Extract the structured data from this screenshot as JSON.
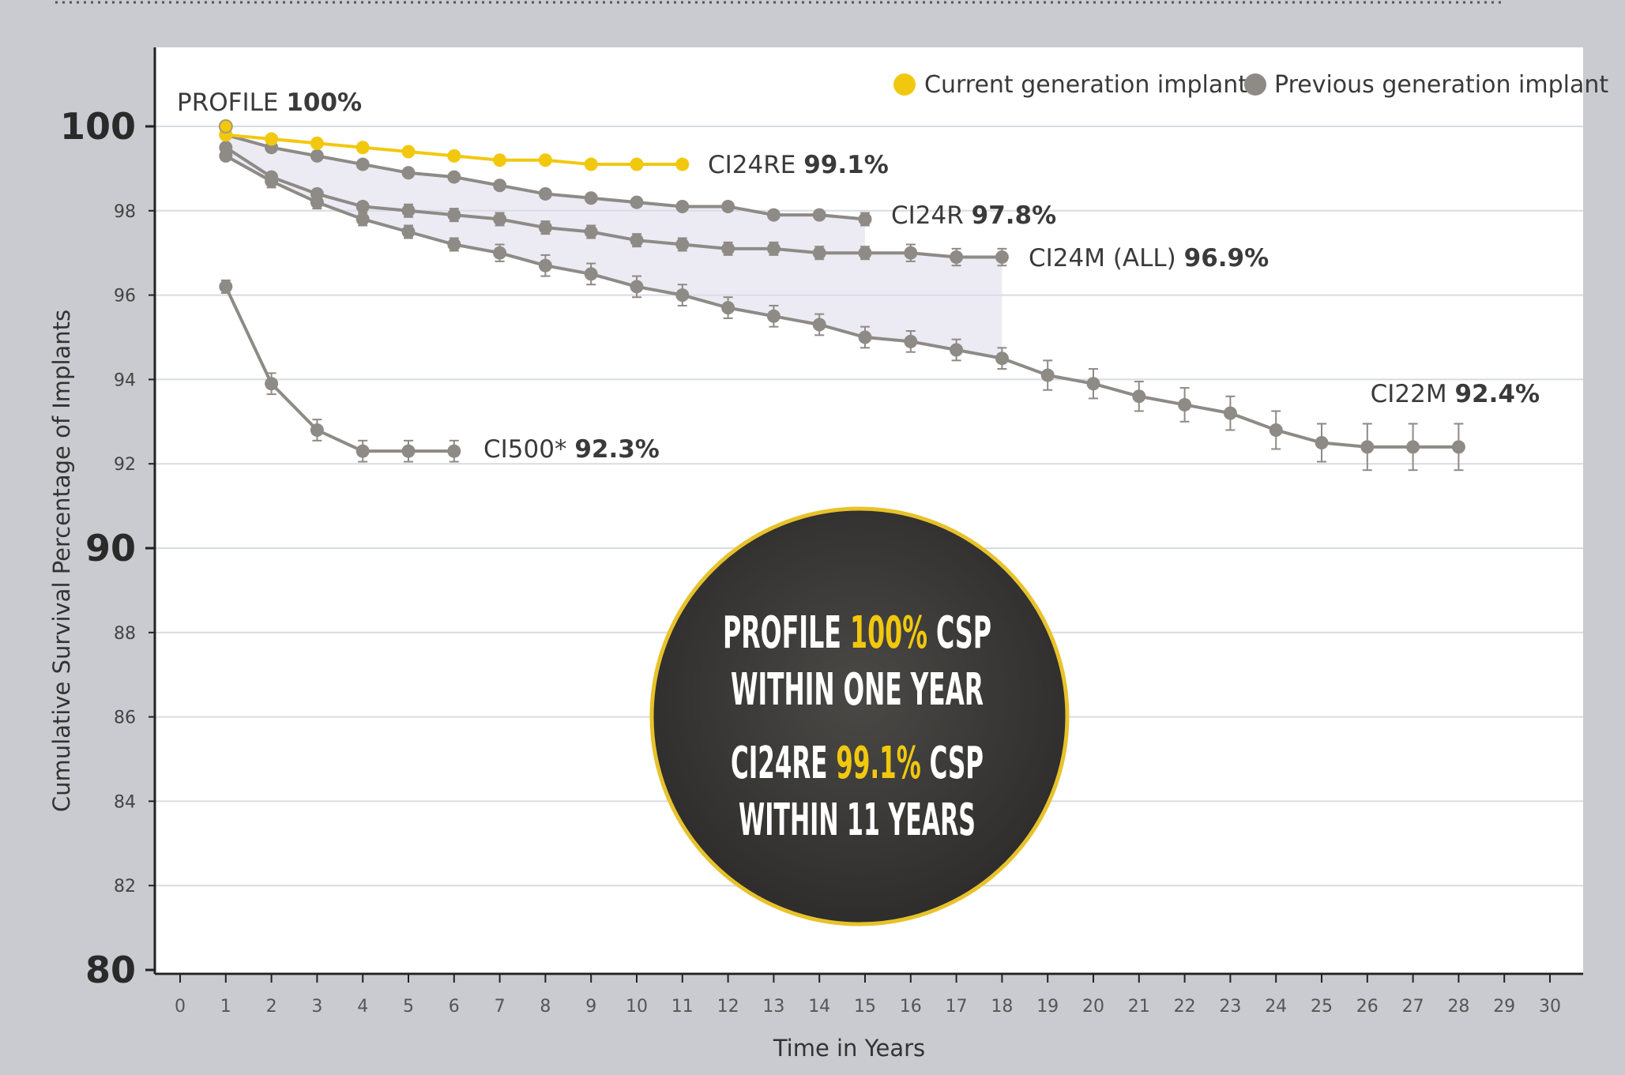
{
  "chart_data": {
    "type": "line",
    "title": "",
    "xlabel": "Time in Years",
    "ylabel": "Cumulative Survival Percentage of Implants",
    "xlim": [
      0,
      30
    ],
    "ylim": [
      80,
      102
    ],
    "x_ticks": [
      0,
      1,
      2,
      3,
      4,
      5,
      6,
      7,
      8,
      9,
      10,
      11,
      12,
      13,
      14,
      15,
      16,
      17,
      18,
      19,
      20,
      21,
      22,
      23,
      24,
      25,
      26,
      27,
      28,
      29,
      30
    ],
    "y_ticks_major": [
      100,
      90,
      80
    ],
    "y_ticks_minor": [
      98,
      96,
      94,
      92,
      88,
      86,
      84,
      82
    ],
    "grid": "horizontal",
    "legend_position": "top-right",
    "legend": [
      {
        "label": "Current generation implant",
        "color": "#f2c80f"
      },
      {
        "label": "Previous generation implant",
        "color": "#8e8a86"
      }
    ],
    "series": [
      {
        "name": "CI22M",
        "generation": "previous",
        "end_label_name": "CI22M",
        "end_label_value": "92.4%",
        "x": [
          1,
          2,
          3,
          4,
          5,
          6,
          7,
          8,
          9,
          10,
          11,
          12,
          13,
          14,
          15,
          16,
          17,
          18,
          19,
          20,
          21,
          22,
          23,
          24,
          25,
          26,
          27,
          28
        ],
        "y": [
          99.3,
          98.7,
          98.2,
          97.8,
          97.5,
          97.2,
          97.0,
          96.7,
          96.5,
          96.2,
          96.0,
          95.7,
          95.5,
          95.3,
          95.0,
          94.9,
          94.7,
          94.5,
          94.1,
          93.9,
          93.6,
          93.4,
          93.2,
          92.8,
          92.5,
          92.4,
          92.4,
          92.4
        ],
        "err": [
          0.1,
          0.15,
          0.15,
          0.15,
          0.15,
          0.15,
          0.2,
          0.25,
          0.25,
          0.25,
          0.25,
          0.25,
          0.25,
          0.25,
          0.25,
          0.25,
          0.25,
          0.25,
          0.35,
          0.35,
          0.35,
          0.4,
          0.4,
          0.45,
          0.45,
          0.55,
          0.55,
          0.55
        ]
      },
      {
        "name": "CI24M (ALL)",
        "generation": "previous",
        "end_label_name": "CI24M (ALL)",
        "end_label_value": "96.9%",
        "x": [
          1,
          2,
          3,
          4,
          5,
          6,
          7,
          8,
          9,
          10,
          11,
          12,
          13,
          14,
          15,
          16,
          17,
          18
        ],
        "y": [
          99.5,
          98.8,
          98.4,
          98.1,
          98.0,
          97.9,
          97.8,
          97.6,
          97.5,
          97.3,
          97.2,
          97.1,
          97.1,
          97.0,
          97.0,
          97.0,
          96.9,
          96.9
        ],
        "err": [
          0.05,
          0.1,
          0.1,
          0.1,
          0.15,
          0.15,
          0.15,
          0.15,
          0.15,
          0.15,
          0.15,
          0.15,
          0.15,
          0.15,
          0.15,
          0.2,
          0.2,
          0.2
        ]
      },
      {
        "name": "CI24R",
        "generation": "previous",
        "end_label_name": "CI24R",
        "end_label_value": "97.8%",
        "x": [
          1,
          2,
          3,
          4,
          5,
          6,
          7,
          8,
          9,
          10,
          11,
          12,
          13,
          14,
          15
        ],
        "y": [
          99.8,
          99.5,
          99.3,
          99.1,
          98.9,
          98.8,
          98.6,
          98.4,
          98.3,
          98.2,
          98.1,
          98.1,
          97.9,
          97.9,
          97.8
        ],
        "err": [
          0,
          0,
          0,
          0,
          0,
          0,
          0,
          0,
          0,
          0,
          0.05,
          0.05,
          0.1,
          0.1,
          0.15
        ]
      },
      {
        "name": "CI500*",
        "generation": "previous",
        "end_label_name": "CI500*",
        "end_label_value": "92.3%",
        "x": [
          1,
          2,
          3,
          4,
          5,
          6
        ],
        "y": [
          96.2,
          93.9,
          92.8,
          92.3,
          92.3,
          92.3
        ],
        "err": [
          0.15,
          0.25,
          0.25,
          0.25,
          0.25,
          0.25
        ]
      },
      {
        "name": "CI24RE",
        "generation": "current",
        "end_label_name": "CI24RE",
        "end_label_value": "99.1%",
        "x": [
          1,
          2,
          3,
          4,
          5,
          6,
          7,
          8,
          9,
          10,
          11
        ],
        "y": [
          99.8,
          99.7,
          99.6,
          99.5,
          99.4,
          99.3,
          99.2,
          99.2,
          99.1,
          99.1,
          99.1
        ],
        "err": [
          0,
          0,
          0,
          0,
          0,
          0,
          0,
          0,
          0,
          0,
          0
        ]
      },
      {
        "name": "PROFILE",
        "generation": "current",
        "end_label_name": "PROFILE",
        "end_label_value": "100%",
        "x": [
          1
        ],
        "y": [
          100.0
        ],
        "err": [
          0
        ]
      }
    ],
    "colors": {
      "current": "#f2c80f",
      "previous": "#8e8a86",
      "band": "#dcdbe9"
    }
  },
  "callout": {
    "line1": {
      "prefix": "PROFILE ",
      "highlight": "100%",
      "suffix": " CSP"
    },
    "line2": "WITHIN ONE YEAR",
    "line3": {
      "prefix": "CI24RE ",
      "highlight": "99.1%",
      "suffix": " CSP"
    },
    "line4": "WITHIN 11 YEARS",
    "bg_color": "#3d3c3a",
    "highlight_color": "#f2c80f",
    "ring_color": "#e7c22a"
  }
}
